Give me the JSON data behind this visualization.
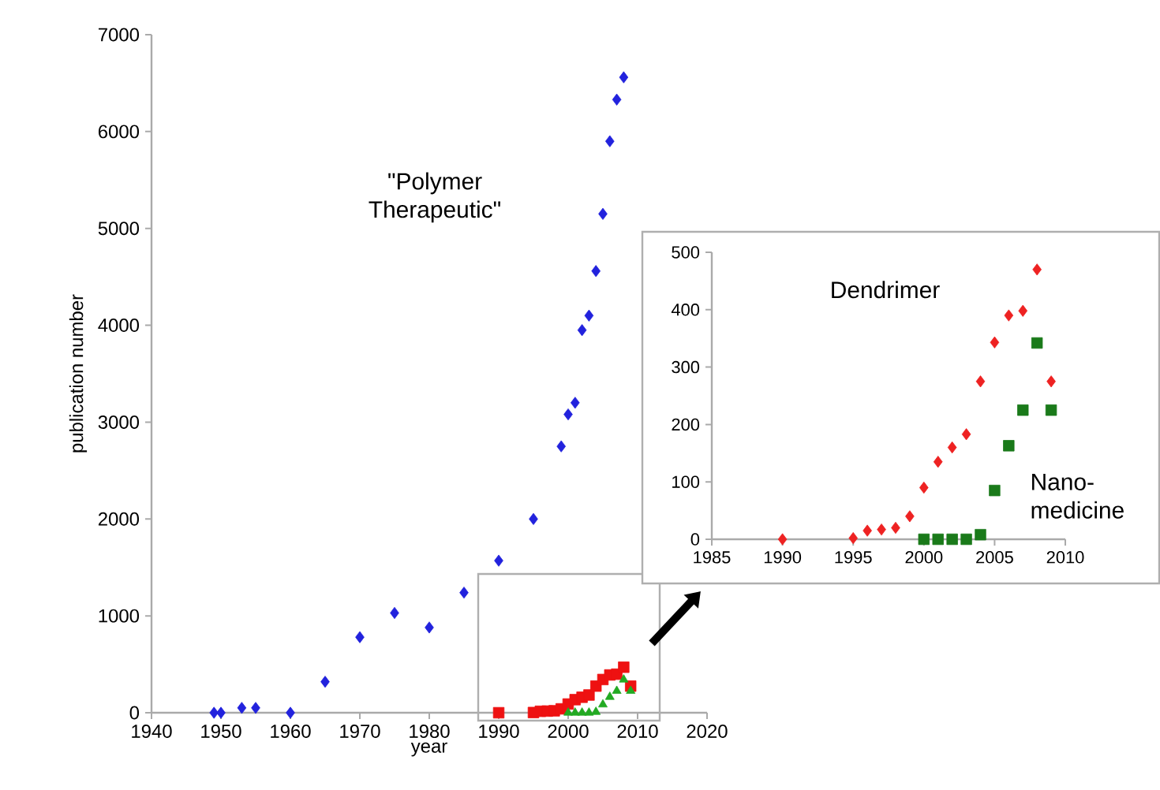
{
  "chart_data": [
    {
      "type": "scatter",
      "xlabel": "year",
      "ylabel": "publication number",
      "xlim": [
        1940,
        2020
      ],
      "ylim": [
        0,
        7000
      ],
      "xticks": [
        1940,
        1950,
        1960,
        1970,
        1980,
        1990,
        2000,
        2010,
        2020
      ],
      "yticks": [
        0,
        1000,
        2000,
        3000,
        4000,
        5000,
        6000,
        7000
      ],
      "grid": false,
      "legend": false,
      "series": [
        {
          "name": "\"Polymer Therapeutic\"",
          "color": "#2222dd",
          "marker": "diamond",
          "x": [
            1949,
            1950,
            1953,
            1955,
            1960,
            1965,
            1970,
            1975,
            1980,
            1985,
            1990,
            1995,
            1999,
            2000,
            2001,
            2002,
            2003,
            2004,
            2005,
            2006,
            2007,
            2008
          ],
          "values": [
            0,
            0,
            50,
            50,
            0,
            320,
            780,
            1030,
            880,
            1240,
            1570,
            2000,
            2750,
            3080,
            3200,
            3950,
            4100,
            4560,
            5150,
            5900,
            6330,
            6560
          ]
        },
        {
          "color": "#ee1111",
          "marker": "square",
          "x": [
            1990,
            1995,
            1996,
            1997,
            1998,
            1999,
            2000,
            2001,
            2002,
            2003,
            2004,
            2005,
            2006,
            2007,
            2008,
            2009
          ],
          "values": [
            0,
            2,
            15,
            17,
            20,
            40,
            90,
            135,
            160,
            183,
            275,
            343,
            390,
            398,
            470,
            275
          ]
        },
        {
          "color": "#22aa22",
          "marker": "triangle",
          "x": [
            2000,
            2001,
            2002,
            2003,
            2004,
            2005,
            2006,
            2007,
            2008,
            2009
          ],
          "values": [
            0,
            0,
            0,
            0,
            8,
            85,
            163,
            225,
            342,
            225
          ]
        }
      ]
    },
    {
      "type": "scatter",
      "xlim": [
        1985,
        2010
      ],
      "ylim": [
        0,
        500
      ],
      "xticks": [
        1985,
        1990,
        1995,
        2000,
        2005,
        2010
      ],
      "yticks": [
        0,
        100,
        200,
        300,
        400,
        500
      ],
      "grid": false,
      "legend": false,
      "series": [
        {
          "name": "Dendrimer",
          "color": "#ee2222",
          "marker": "diamond",
          "x": [
            1990,
            1995,
            1996,
            1997,
            1998,
            1999,
            2000,
            2001,
            2002,
            2003,
            2004,
            2005,
            2006,
            2007,
            2008,
            2009
          ],
          "values": [
            0,
            2,
            15,
            17,
            20,
            40,
            90,
            135,
            160,
            183,
            275,
            343,
            390,
            398,
            470,
            275
          ]
        },
        {
          "name": "Nano-medicine",
          "color": "#1a7a1a",
          "marker": "square",
          "x": [
            2000,
            2001,
            2002,
            2003,
            2004,
            2005,
            2006,
            2007,
            2008,
            2009
          ],
          "values": [
            0,
            0,
            0,
            0,
            8,
            85,
            163,
            225,
            342,
            225
          ]
        }
      ]
    }
  ]
}
